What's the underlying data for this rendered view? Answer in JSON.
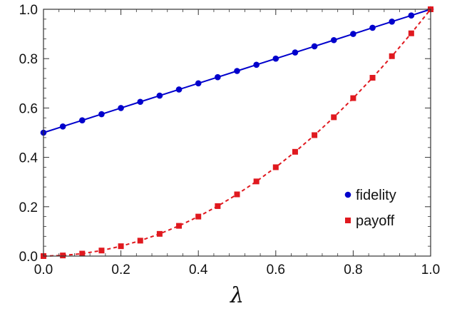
{
  "chart_data": {
    "type": "scatter",
    "title": "",
    "xlabel": "λ",
    "ylabel": "",
    "xlim": [
      0.0,
      1.0
    ],
    "ylim": [
      0.0,
      1.0
    ],
    "grid": false,
    "legend_position": "center-right",
    "x_ticks": [
      "0.0",
      "0.2",
      "0.4",
      "0.6",
      "0.8",
      "1.0"
    ],
    "y_ticks": [
      "0.0",
      "0.2",
      "0.4",
      "0.6",
      "0.8",
      "1.0"
    ],
    "x": [
      0.0,
      0.05,
      0.1,
      0.15,
      0.2,
      0.25,
      0.3,
      0.35,
      0.4,
      0.45,
      0.5,
      0.55,
      0.6,
      0.65,
      0.7,
      0.75,
      0.8,
      0.85,
      0.9,
      0.95,
      1.0
    ],
    "series": [
      {
        "name": "fidelity",
        "color": "#0000cc",
        "marker": "circle",
        "curve_style": "solid",
        "values": [
          0.5,
          0.525,
          0.55,
          0.575,
          0.6,
          0.625,
          0.65,
          0.675,
          0.7,
          0.725,
          0.75,
          0.775,
          0.8,
          0.825,
          0.85,
          0.875,
          0.9,
          0.925,
          0.95,
          0.975,
          1.0
        ]
      },
      {
        "name": "payoff",
        "color": "#e0191f",
        "marker": "square",
        "curve_style": "dashed",
        "values": [
          0.0,
          0.0025,
          0.01,
          0.0225,
          0.04,
          0.0625,
          0.09,
          0.1225,
          0.16,
          0.2025,
          0.25,
          0.3025,
          0.36,
          0.4225,
          0.49,
          0.5625,
          0.64,
          0.7225,
          0.81,
          0.9025,
          1.0
        ]
      }
    ]
  }
}
